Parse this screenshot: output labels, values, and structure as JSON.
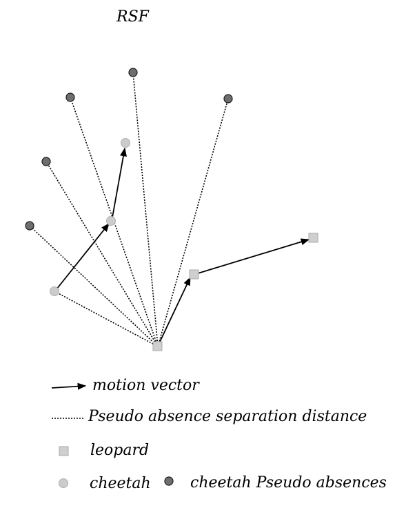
{
  "diagram": {
    "title": "RSF",
    "legend": {
      "motion_vector": "motion vector",
      "separation_distance": "Pseudo absence separation distance",
      "leopard": "leopard",
      "cheetah": "cheetah",
      "cheetah_pseudo_absences": "cheetah Pseudo absences"
    },
    "colors": {
      "background": "#ffffff",
      "arrow": "#000000",
      "dotted_line": "#000000",
      "leopard_fill": "#cfcfcf",
      "leopard_stroke": "#a8a8a8",
      "cheetah_fill": "#cccccc",
      "cheetah_stroke": "#b0b0b0",
      "pseudo_absence_fill": "#6e6e6e",
      "pseudo_absence_stroke": "#1a1a1a"
    }
  }
}
